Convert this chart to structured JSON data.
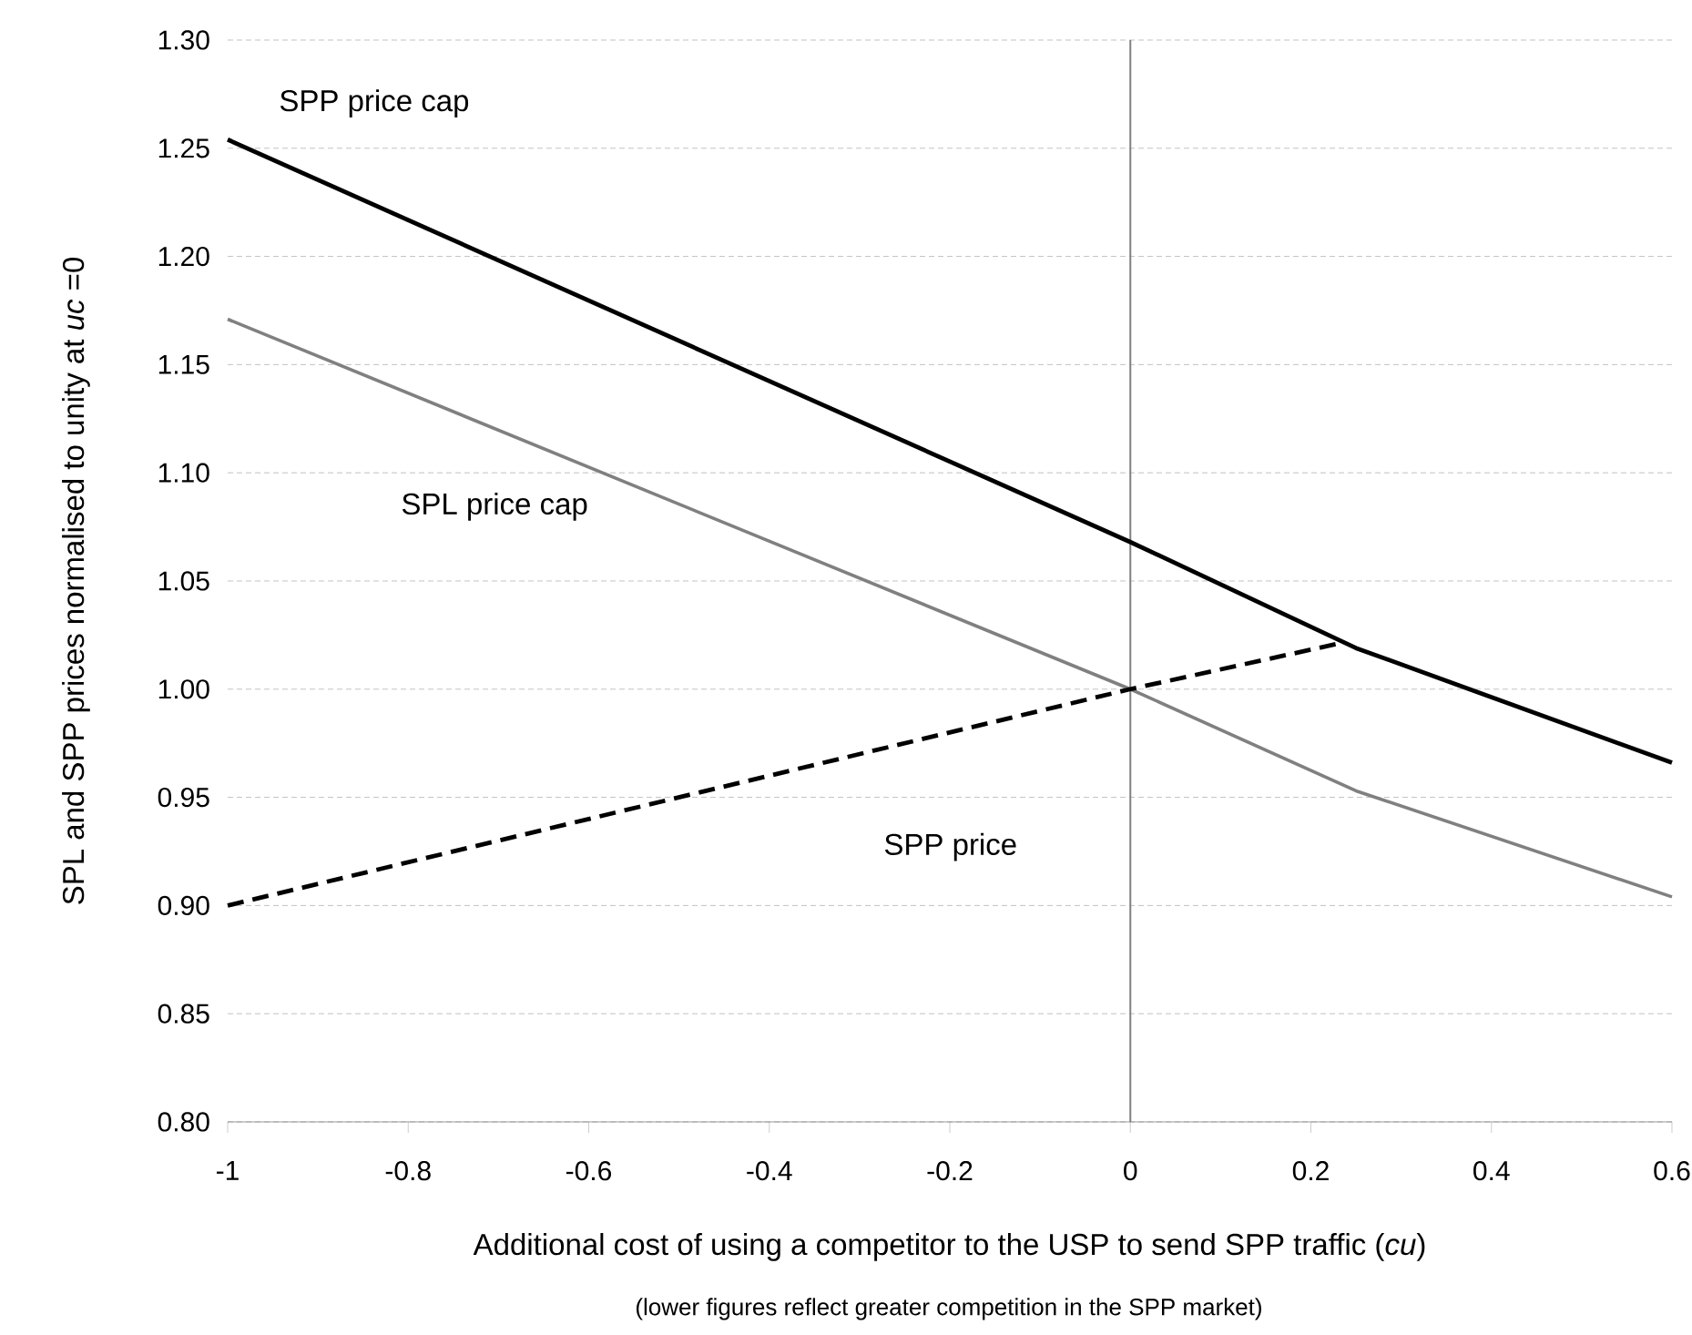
{
  "chart_data": {
    "type": "line",
    "ylabel": "SPL and SPP prices normalised to unity at *uc* =0",
    "xlabel": "Additional cost of using a competitor to the USP to send SPP traffic (*cu*)",
    "annotations": [
      "(lower figures reflect greater competition in the SPP market)"
    ],
    "series": [
      {
        "name": "SPP price cap",
        "color": "#000000",
        "line_style": "solid",
        "x": [
          -1,
          0,
          0.25,
          0.6
        ],
        "values": [
          1.254,
          1.068,
          1.019,
          0.966
        ]
      },
      {
        "name": "SPL price cap",
        "color": "#808080",
        "line_style": "solid",
        "x": [
          -1,
          0,
          0.25,
          0.6
        ],
        "values": [
          1.171,
          1.0,
          0.953,
          0.904
        ]
      },
      {
        "name": "SPP price",
        "color": "#000000",
        "line_style": "dashed",
        "x": [
          -1,
          0,
          0.23
        ],
        "values": [
          0.9,
          1.0,
          1.021
        ]
      }
    ],
    "marker": "none",
    "grid": "y",
    "xlim": [
      -1,
      0.6
    ],
    "xticks": [
      -1,
      -0.8,
      -0.6,
      -0.4,
      -0.2,
      0,
      0.2,
      0.4,
      0.6
    ],
    "ylim": [
      0.8,
      1.3
    ],
    "yticks": [
      {
        "value": 0.8,
        "label": "0.80"
      },
      {
        "value": 0.85,
        "label": "0.85"
      },
      {
        "value": 0.9,
        "label": "0.90"
      },
      {
        "value": 0.95,
        "label": "0.95"
      },
      {
        "value": 1.0,
        "label": "1.00"
      },
      {
        "value": 1.05,
        "label": "1.05"
      },
      {
        "value": 1.1,
        "label": "1.10"
      },
      {
        "value": 1.15,
        "label": "1.15"
      },
      {
        "value": 1.2,
        "label": "1.20"
      },
      {
        "value": 1.25,
        "label": "1.25"
      },
      {
        "value": 1.3,
        "label": "1.30"
      }
    ],
    "ref_lines": [
      {
        "axis": "x",
        "value": 0,
        "color": "#808080"
      }
    ]
  }
}
